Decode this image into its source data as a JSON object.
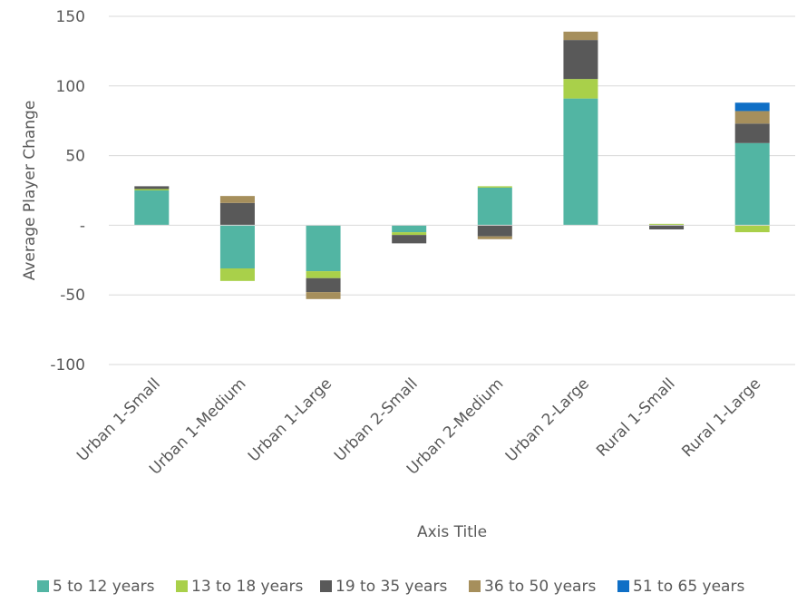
{
  "chart_data": {
    "type": "bar",
    "stacked": true,
    "categories": [
      "Urban 1-Small",
      "Urban 1-Medium",
      "Urban 1-Large",
      "Urban 2-Small",
      "Urban 2-Medium",
      "Urban 2-Large",
      "Rural 1-Small",
      "Rural 1-Large"
    ],
    "series": [
      {
        "name": "5 to 12 years",
        "color": "#52b5a3",
        "values": [
          25,
          -31,
          -33,
          -5,
          27,
          91,
          0,
          59
        ]
      },
      {
        "name": "13 to 18 years",
        "color": "#a9d04a",
        "values": [
          1,
          -9,
          -5,
          -2,
          1,
          14,
          1,
          -5
        ]
      },
      {
        "name": "19 to 35 years",
        "color": "#595959",
        "values": [
          2,
          16,
          -10,
          -6,
          -8,
          28,
          -3,
          14
        ]
      },
      {
        "name": "36 to 50 years",
        "color": "#a68f5c",
        "values": [
          0,
          5,
          -5,
          0,
          -2,
          6,
          0,
          9
        ]
      },
      {
        "name": "51 to 65 years",
        "color": "#0f6fc6",
        "values": [
          0,
          0,
          0,
          0,
          0,
          0,
          0,
          6
        ]
      }
    ],
    "ylim": [
      -100,
      150
    ],
    "yticks": [
      150,
      100,
      50,
      0,
      -50,
      -100
    ],
    "ytick_labels": [
      "150",
      "100",
      "50",
      "-",
      "-50",
      "-100"
    ],
    "xlabel": "Axis Title",
    "ylabel": "Average Player Change",
    "grid": true,
    "legend_position": "bottom"
  }
}
